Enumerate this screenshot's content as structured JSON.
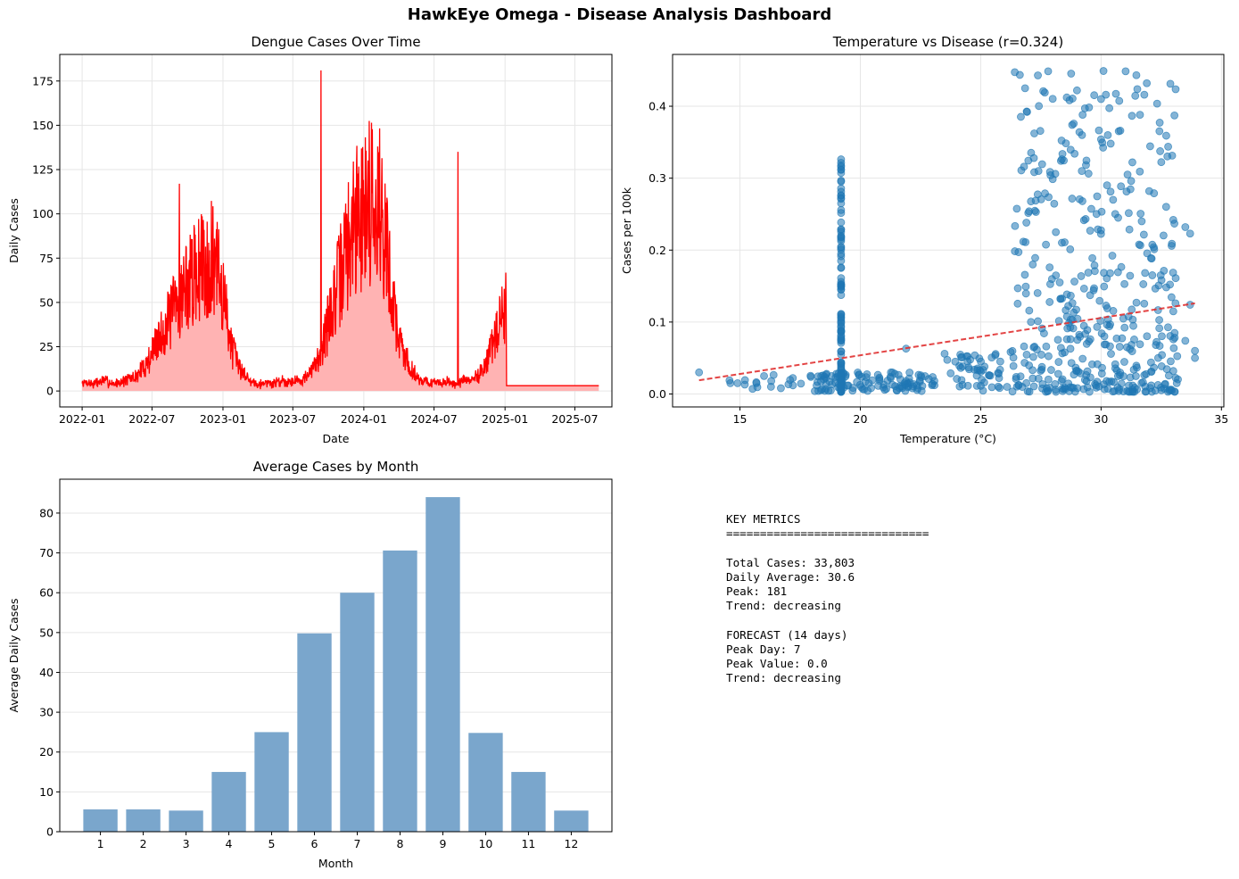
{
  "dashboard": {
    "title": "HawkEye Omega - Disease Analysis Dashboard"
  },
  "chart_data": [
    {
      "id": "timeseries",
      "type": "area",
      "title": "Dengue Cases Over Time",
      "xlabel": "Date",
      "ylabel": "Daily Cases",
      "x_ticks": [
        "2022-01",
        "2022-07",
        "2023-01",
        "2023-07",
        "2024-01",
        "2024-07",
        "2025-01",
        "2025-07"
      ],
      "xlim": [
        "2021-11-04",
        "2025-10-05"
      ],
      "ylim": [
        -9,
        190
      ],
      "y_ticks": [
        0,
        25,
        50,
        75,
        100,
        125,
        150,
        175
      ],
      "series": [
        {
          "x_start": "2022-01-01",
          "x_end": "2025-09-01",
          "line_color": "#ff0000",
          "fill_color": "#ffb3b3",
          "x_step_days": 14,
          "values": [
            4,
            5,
            4,
            5,
            6,
            5,
            4,
            5,
            6,
            7,
            8,
            12,
            16,
            22,
            28,
            34,
            40,
            46,
            52,
            58,
            62,
            66,
            70,
            72,
            74,
            68,
            55,
            38,
            22,
            14,
            10,
            6,
            5,
            4,
            5,
            4,
            5,
            6,
            5,
            6,
            6,
            7,
            9,
            14,
            22,
            32,
            44,
            56,
            68,
            80,
            90,
            98,
            104,
            108,
            112,
            106,
            88,
            64,
            40,
            26,
            18,
            12,
            8,
            6,
            5,
            5,
            4,
            5,
            5,
            4,
            5,
            6,
            6,
            8,
            12,
            18,
            26,
            34,
            44,
            54,
            62,
            68,
            72,
            76,
            78,
            72,
            58,
            40,
            24,
            16,
            10,
            6,
            3,
            3,
            3,
            3,
            3,
            3,
            3,
            3,
            3,
            3,
            3,
            3,
            3,
            3,
            3,
            3,
            3,
            3,
            3,
            3,
            3,
            3,
            3,
            3
          ],
          "peaks": [
            117,
            181,
            135
          ],
          "forecast_tail_value": 3
        }
      ],
      "grid": true
    },
    {
      "id": "scatter",
      "type": "scatter",
      "title": "Temperature vs Disease (r=0.324)",
      "xlabel": "Temperature (°C)",
      "ylabel": "Cases per 100k",
      "xlim": [
        12.2,
        35.1
      ],
      "ylim": [
        -0.018,
        0.472
      ],
      "x_ticks": [
        15,
        20,
        25,
        30,
        35
      ],
      "y_ticks": [
        0.0,
        0.1,
        0.2,
        0.3,
        0.4
      ],
      "point_color": "#1f77b4",
      "trend_line": {
        "color": "#e03030",
        "x": [
          13.3,
          33.9
        ],
        "y": [
          0.019,
          0.126
        ]
      },
      "clusters": [
        {
          "x_center": 19.2,
          "x_spread": 0.0,
          "y_min": 0.003,
          "y_max": 0.33,
          "count": 120
        },
        {
          "x_center": 20.5,
          "x_spread": 2.6,
          "y_min": 0.003,
          "y_max": 0.03,
          "count": 110
        },
        {
          "x_center": 16.5,
          "x_spread": 2.6,
          "y_min": 0.005,
          "y_max": 0.03,
          "count": 20
        },
        {
          "x_center": 25.0,
          "x_spread": 1.6,
          "y_min": 0.003,
          "y_max": 0.06,
          "count": 60
        },
        {
          "x_center": 29.8,
          "x_spread": 3.4,
          "y_min": 0.003,
          "y_max": 0.45,
          "count": 420
        }
      ],
      "points": [
        {
          "x": 13.3,
          "y": 0.03
        },
        {
          "x": 14.6,
          "y": 0.015
        },
        {
          "x": 14.9,
          "y": 0.015
        },
        {
          "x": 15.2,
          "y": 0.013
        },
        {
          "x": 16.0,
          "y": 0.025
        },
        {
          "x": 16.3,
          "y": 0.018
        },
        {
          "x": 16.7,
          "y": 0.008
        },
        {
          "x": 17.2,
          "y": 0.012
        },
        {
          "x": 30.1,
          "y": 0.449
        },
        {
          "x": 31.9,
          "y": 0.432
        },
        {
          "x": 27.6,
          "y": 0.421
        },
        {
          "x": 29.0,
          "y": 0.422
        },
        {
          "x": 30.2,
          "y": 0.416
        },
        {
          "x": 30.0,
          "y": 0.41
        },
        {
          "x": 28.8,
          "y": 0.374
        },
        {
          "x": 29.1,
          "y": 0.364
        },
        {
          "x": 30.8,
          "y": 0.366
        },
        {
          "x": 30.0,
          "y": 0.354
        },
        {
          "x": 30.4,
          "y": 0.348
        },
        {
          "x": 28.9,
          "y": 0.334
        },
        {
          "x": 31.3,
          "y": 0.322
        },
        {
          "x": 27.4,
          "y": 0.31
        },
        {
          "x": 29.2,
          "y": 0.31
        },
        {
          "x": 31.1,
          "y": 0.305
        },
        {
          "x": 27.9,
          "y": 0.304
        },
        {
          "x": 28.1,
          "y": 0.306
        },
        {
          "x": 32.0,
          "y": 0.282
        },
        {
          "x": 32.2,
          "y": 0.279
        },
        {
          "x": 30.5,
          "y": 0.27
        },
        {
          "x": 33.0,
          "y": 0.242
        },
        {
          "x": 33.5,
          "y": 0.232
        },
        {
          "x": 33.7,
          "y": 0.223
        },
        {
          "x": 33.1,
          "y": 0.161
        },
        {
          "x": 33.7,
          "y": 0.124
        },
        {
          "x": 33.9,
          "y": 0.06
        },
        {
          "x": 33.9,
          "y": 0.05
        },
        {
          "x": 33.5,
          "y": 0.074
        },
        {
          "x": 33.0,
          "y": 0.032
        },
        {
          "x": 21.9,
          "y": 0.063
        },
        {
          "x": 23.5,
          "y": 0.056
        }
      ],
      "grid": true
    },
    {
      "id": "monthly",
      "type": "bar",
      "title": "Average Cases by Month",
      "xlabel": "Month",
      "ylabel": "Average Daily Cases",
      "categories": [
        "1",
        "2",
        "3",
        "4",
        "5",
        "6",
        "7",
        "8",
        "9",
        "10",
        "11",
        "12"
      ],
      "values": [
        5.6,
        5.6,
        5.3,
        15.0,
        25.0,
        49.8,
        60.0,
        70.6,
        84.0,
        24.8,
        15.0,
        5.3
      ],
      "ylim": [
        0,
        88.5
      ],
      "y_ticks": [
        0,
        10,
        20,
        30,
        40,
        50,
        60,
        70,
        80
      ],
      "bar_color": "#7aa6cc",
      "grid": true
    }
  ],
  "metrics": {
    "lines": [
      "KEY METRICS",
      "==============================",
      "",
      "Total Cases: 33,803",
      "Daily Average: 30.6",
      "Peak: 181",
      "Trend: decreasing",
      "",
      "FORECAST (14 days)",
      "Peak Day: 7",
      "Peak Value: 0.0",
      "Trend: decreasing"
    ]
  }
}
